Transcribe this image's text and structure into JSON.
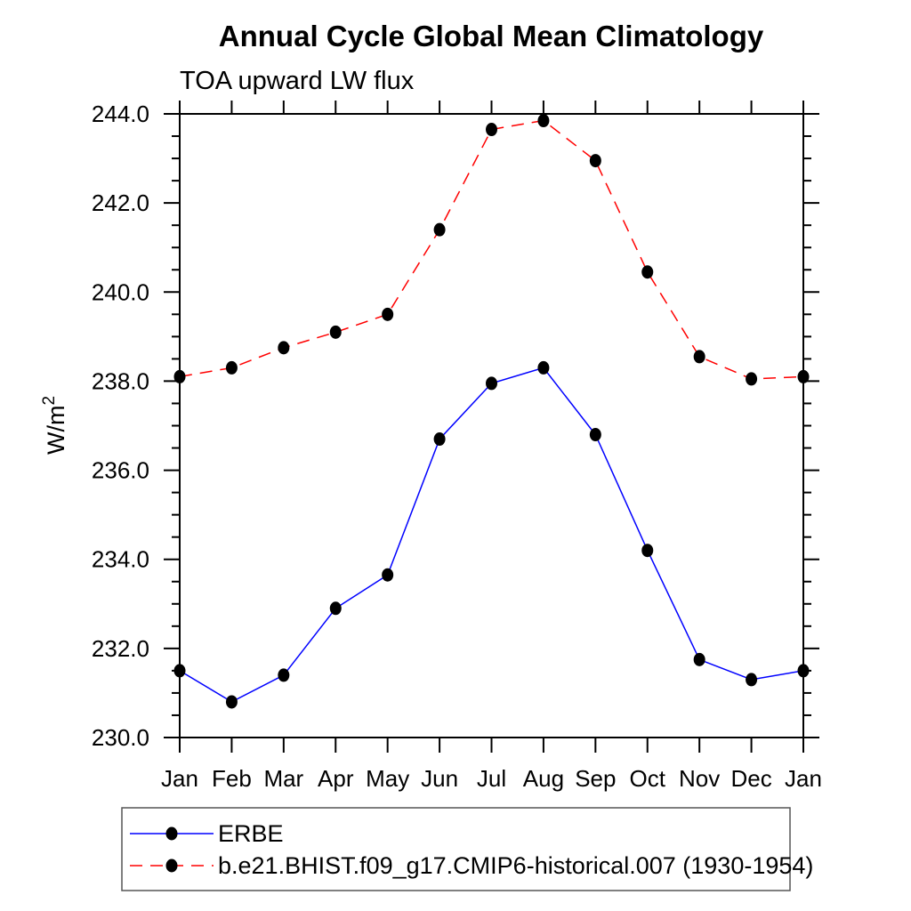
{
  "chart_data": {
    "type": "line",
    "title": "Annual Cycle Global Mean Climatology",
    "subtitle": "TOA upward LW flux",
    "ylabel": "W/m2",
    "ylabel_parts": {
      "base": "W/m",
      "sup": "2"
    },
    "categories": [
      "Jan",
      "Feb",
      "Mar",
      "Apr",
      "May",
      "Jun",
      "Jul",
      "Aug",
      "Sep",
      "Oct",
      "Nov",
      "Dec",
      "Jan"
    ],
    "series": [
      {
        "name": "ERBE",
        "color": "#0000ff",
        "style": "solid",
        "marker": "filled-circle",
        "marker_color": "#000000",
        "values": [
          231.5,
          230.8,
          231.4,
          232.9,
          233.65,
          236.7,
          237.95,
          238.3,
          236.8,
          234.2,
          231.75,
          231.3,
          231.5
        ]
      },
      {
        "name": "b.e21.BHIST.f09_g17.CMIP6-historical.007 (1930-1954)",
        "color": "#ff0000",
        "style": "dashed",
        "marker": "filled-circle",
        "marker_color": "#000000",
        "values": [
          238.1,
          238.3,
          238.75,
          239.1,
          239.5,
          241.4,
          243.65,
          243.85,
          242.95,
          240.45,
          238.55,
          238.05,
          238.1
        ]
      }
    ],
    "y_axis": {
      "min": 230.0,
      "max": 244.0,
      "major_step": 2.0,
      "minor_step": 0.5,
      "tick_labels": [
        "230.0",
        "232.0",
        "234.0",
        "236.0",
        "238.0",
        "240.0",
        "242.0",
        "244.0"
      ]
    },
    "x_axis": {
      "label": "",
      "ticks_per_category": true
    },
    "grid": false,
    "legend_position": "bottom-left",
    "frame_color": "#000000"
  }
}
